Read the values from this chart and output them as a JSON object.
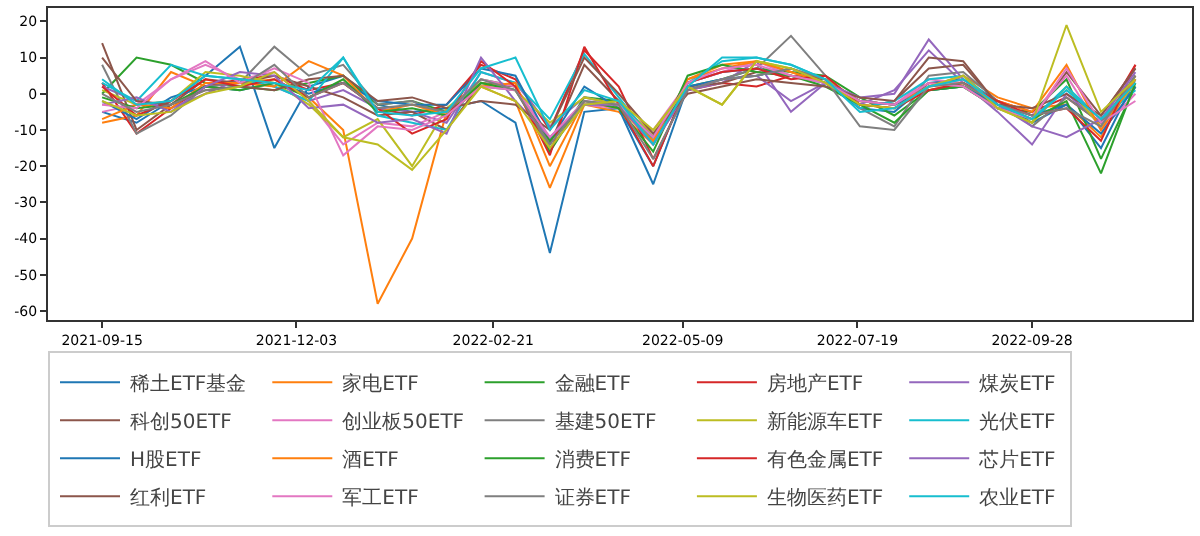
{
  "chart_data": {
    "type": "line",
    "x": [
      "2021-09-15",
      "2021-09-29",
      "2021-10-13",
      "2021-10-27",
      "2021-11-10",
      "2021-11-24",
      "2021-12-08",
      "2021-12-22",
      "2022-01-05",
      "2022-01-19",
      "2022-02-02",
      "2022-02-16",
      "2022-03-02",
      "2022-03-16",
      "2022-03-30",
      "2022-04-13",
      "2022-04-27",
      "2022-05-11",
      "2022-05-25",
      "2022-06-08",
      "2022-06-22",
      "2022-07-06",
      "2022-07-20",
      "2022-08-03",
      "2022-08-17",
      "2022-08-31",
      "2022-09-14",
      "2022-09-28",
      "2022-10-12",
      "2022-10-26",
      "2022-11-09"
    ],
    "xlim": [
      "2021-08-24",
      "2022-12-02"
    ],
    "xticks": [
      "2021-09-15",
      "2021-12-03",
      "2022-02-21",
      "2022-05-09",
      "2022-07-19",
      "2022-09-28"
    ],
    "ylim": [
      -62.5,
      23.7
    ],
    "yticks": [
      -60,
      -50,
      -40,
      -30,
      -20,
      -10,
      0,
      10,
      20
    ],
    "grid": false,
    "legend": "bottom",
    "series": [
      {
        "name": "稀土ETF基金",
        "color": "#1f77b4",
        "values": [
          -5,
          -8,
          -2,
          5,
          13,
          -15,
          2,
          5,
          -3,
          -5,
          -4,
          -2,
          -8,
          -44,
          -5,
          -4,
          -20,
          3,
          6,
          7,
          5,
          3,
          -4,
          -5,
          3,
          4,
          -2,
          -8,
          -3,
          -15,
          4
        ]
      },
      {
        "name": "家电ETF",
        "color": "#ff7f0e",
        "values": [
          -8,
          -6,
          6,
          2,
          3,
          4,
          -1,
          -10,
          -58,
          -40,
          -5,
          2,
          -2,
          -26,
          -3,
          -5,
          -14,
          4,
          8,
          9,
          6,
          3,
          -2,
          -3,
          2,
          5,
          -1,
          -4,
          -3,
          -12,
          5
        ]
      },
      {
        "name": "金融ETF",
        "color": "#2ca02c",
        "values": [
          0,
          10,
          8,
          3,
          2,
          1,
          3,
          5,
          -3,
          -2,
          -5,
          4,
          2,
          -16,
          -1,
          -2,
          -12,
          2,
          4,
          7,
          6,
          5,
          -1,
          -6,
          1,
          2,
          -4,
          -5,
          4,
          -18,
          2
        ]
      },
      {
        "name": "房地产ETF",
        "color": "#d62728",
        "values": [
          3,
          -11,
          -4,
          2,
          4,
          5,
          1,
          3,
          -4,
          -6,
          -3,
          8,
          4,
          -10,
          12,
          2,
          -18,
          1,
          3,
          2,
          5,
          4,
          -2,
          -3,
          3,
          2,
          -2,
          -5,
          -1,
          -8,
          8
        ]
      },
      {
        "name": "煤炭ETF",
        "color": "#9467bd",
        "values": [
          2,
          -2,
          -4,
          0,
          4,
          2,
          -2,
          1,
          -4,
          -5,
          -8,
          6,
          3,
          -9,
          -1,
          -3,
          -14,
          1,
          3,
          9,
          -5,
          3,
          -3,
          1,
          12,
          3,
          -5,
          -14,
          0,
          -8,
          4
        ]
      },
      {
        "name": "科创50ETF",
        "color": "#8c564b",
        "values": [
          14,
          -10,
          -3,
          4,
          3,
          5,
          2,
          -1,
          -6,
          -5,
          -10,
          3,
          2,
          -14,
          8,
          -2,
          -13,
          2,
          3,
          6,
          5,
          4,
          -4,
          -2,
          7,
          8,
          -3,
          -7,
          6,
          -6,
          7
        ]
      },
      {
        "name": "创业板50ETF",
        "color": "#e377c2",
        "values": [
          -5,
          -3,
          4,
          8,
          4,
          6,
          -2,
          -14,
          -8,
          -9,
          -5,
          4,
          2,
          -12,
          -3,
          -4,
          -10,
          3,
          6,
          9,
          5,
          3,
          -2,
          -3,
          4,
          3,
          -3,
          -6,
          5,
          -10,
          0
        ]
      },
      {
        "name": "基建50ETF",
        "color": "#7f7f7f",
        "values": [
          8,
          -11,
          -6,
          2,
          3,
          13,
          5,
          8,
          -3,
          -2,
          -6,
          2,
          1,
          -15,
          -3,
          -2,
          -12,
          1,
          4,
          7,
          16,
          5,
          -4,
          -9,
          5,
          6,
          -2,
          -9,
          -1,
          -8,
          5
        ]
      },
      {
        "name": "新能源车ETF",
        "color": "#bcbd22",
        "values": [
          1,
          -3,
          -2,
          6,
          5,
          3,
          -3,
          -12,
          -7,
          -20,
          -4,
          3,
          1,
          -8,
          -1,
          -3,
          -11,
          2,
          -3,
          9,
          7,
          4,
          -2,
          -3,
          1,
          3,
          -4,
          -8,
          2,
          -9,
          3
        ]
      },
      {
        "name": "光伏ETF",
        "color": "#17becf",
        "values": [
          3,
          -2,
          8,
          5,
          4,
          2,
          -2,
          10,
          -6,
          -8,
          -10,
          6,
          3,
          -7,
          11,
          -1,
          -13,
          3,
          9,
          10,
          8,
          4,
          -4,
          -2,
          4,
          5,
          -3,
          -7,
          2,
          -7,
          1
        ]
      },
      {
        "name": "H股ETF",
        "color": "#1f77b4",
        "values": [
          -2,
          -7,
          -1,
          2,
          1,
          3,
          0,
          3,
          -2,
          -3,
          -3,
          7,
          5,
          -13,
          2,
          -4,
          -25,
          2,
          4,
          5,
          7,
          3,
          -2,
          -3,
          1,
          2,
          -3,
          -6,
          -3,
          -11,
          2
        ]
      },
      {
        "name": "酒ETF",
        "color": "#ff7f0e",
        "values": [
          -7,
          -3,
          -4,
          3,
          3,
          2,
          9,
          5,
          -5,
          -3,
          -6,
          2,
          3,
          -20,
          -2,
          -4,
          -13,
          4,
          7,
          9,
          6,
          3,
          -3,
          -4,
          2,
          3,
          -2,
          -5,
          8,
          -10,
          4
        ]
      },
      {
        "name": "消费ETF",
        "color": "#2ca02c",
        "values": [
          -1,
          -4,
          -3,
          2,
          1,
          3,
          -1,
          4,
          -5,
          -4,
          -6,
          3,
          1,
          -13,
          -2,
          -4,
          -16,
          5,
          8,
          6,
          5,
          2,
          -3,
          -8,
          1,
          2,
          -4,
          -7,
          -2,
          -22,
          3
        ]
      },
      {
        "name": "有色金属ETF",
        "color": "#d62728",
        "values": [
          2,
          -6,
          -2,
          4,
          2,
          4,
          -1,
          3,
          -4,
          -11,
          -7,
          9,
          2,
          -17,
          13,
          -3,
          -20,
          3,
          6,
          7,
          4,
          5,
          -3,
          -4,
          1,
          3,
          -2,
          -6,
          -4,
          -13,
          8
        ]
      },
      {
        "name": "芯片ETF",
        "color": "#9467bd",
        "values": [
          -3,
          -1,
          -5,
          2,
          6,
          5,
          -4,
          -3,
          -8,
          -7,
          -11,
          10,
          -2,
          -12,
          -3,
          -3,
          -14,
          1,
          4,
          5,
          -2,
          3,
          -1,
          0,
          15,
          4,
          -3,
          -9,
          -12,
          -7,
          6
        ]
      },
      {
        "name": "红利ETF",
        "color": "#8c564b",
        "values": [
          10,
          -2,
          -3,
          1,
          2,
          1,
          4,
          5,
          -2,
          -1,
          -4,
          -2,
          -3,
          -10,
          10,
          0,
          -11,
          0,
          2,
          4,
          3,
          2,
          -1,
          -2,
          10,
          9,
          -3,
          -4,
          0,
          -6,
          7
        ]
      },
      {
        "name": "军工ETF",
        "color": "#e377c2",
        "values": [
          -3,
          -4,
          4,
          9,
          3,
          7,
          3,
          -17,
          -9,
          -10,
          -6,
          2,
          1,
          -12,
          -2,
          -3,
          -12,
          3,
          7,
          8,
          5,
          3,
          -2,
          -3,
          3,
          2,
          -4,
          -7,
          7,
          -8,
          -2
        ]
      },
      {
        "name": "证券ETF",
        "color": "#7f7f7f",
        "values": [
          0,
          -5,
          -3,
          1,
          2,
          8,
          -1,
          3,
          -4,
          -3,
          -5,
          4,
          1,
          -14,
          -2,
          -3,
          -18,
          1,
          4,
          5,
          7,
          4,
          -9,
          -10,
          2,
          3,
          -3,
          -6,
          -4,
          -9,
          5
        ]
      },
      {
        "name": "生物医药ETF",
        "color": "#bcbd22",
        "values": [
          -2,
          -6,
          -5,
          0,
          2,
          6,
          -2,
          -12,
          -14,
          -21,
          -10,
          2,
          -2,
          -15,
          -3,
          -2,
          -10,
          2,
          -3,
          9,
          7,
          3,
          -3,
          -4,
          2,
          5,
          -4,
          -8,
          19,
          -5,
          4
        ]
      },
      {
        "name": "农业ETF",
        "color": "#17becf",
        "values": [
          4,
          -3,
          -2,
          5,
          4,
          3,
          1,
          10,
          -5,
          -6,
          -5,
          7,
          10,
          -10,
          1,
          -2,
          -14,
          2,
          10,
          10,
          8,
          4,
          -5,
          -4,
          2,
          4,
          -3,
          -7,
          1,
          -7,
          3
        ]
      }
    ]
  }
}
